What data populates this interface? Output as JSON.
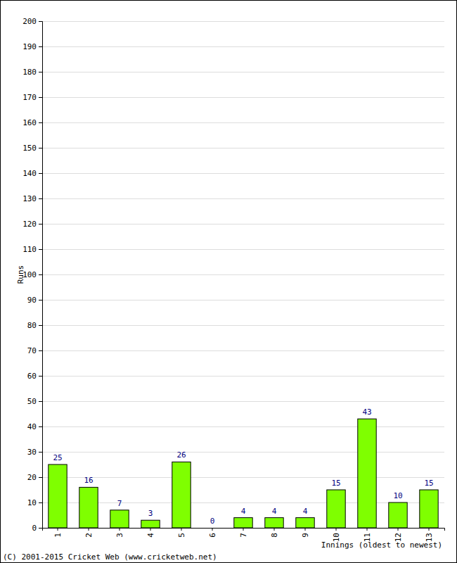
{
  "chart_data": {
    "type": "bar",
    "categories": [
      "1",
      "2",
      "3",
      "4",
      "5",
      "6",
      "7",
      "8",
      "9",
      "10",
      "11",
      "12",
      "13"
    ],
    "values": [
      25,
      16,
      7,
      3,
      26,
      0,
      4,
      4,
      4,
      15,
      43,
      10,
      15
    ],
    "color": "#7fff00",
    "x_label": "Innings (oldest to newest)",
    "y_label": "Runs",
    "annotations": [
      "(C) 2001-2015 Cricket Web (www.cricketweb.net)"
    ],
    "ylim": [
      0,
      200
    ],
    "yticks": [
      0,
      10,
      20,
      30,
      40,
      50,
      60,
      70,
      80,
      90,
      100,
      110,
      120,
      130,
      140,
      150,
      160,
      170,
      180,
      190,
      200
    ],
    "grid": true,
    "data_labels": true
  }
}
